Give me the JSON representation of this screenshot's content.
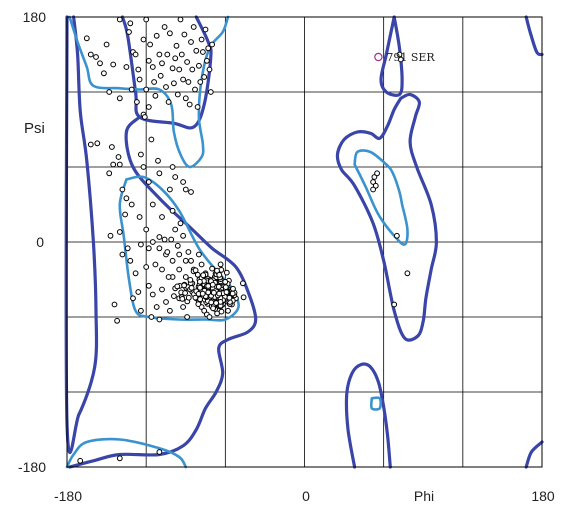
{
  "chart_data": {
    "type": "scatter",
    "title": "",
    "xlabel": "Phi",
    "ylabel": "Psi",
    "xlim": [
      -180,
      180
    ],
    "ylim": [
      -180,
      180
    ],
    "x_tick_labels": [
      "-180",
      "0",
      "Phi",
      "180"
    ],
    "y_tick_labels": [
      "180",
      "0",
      "-180"
    ],
    "grid": true,
    "annotation": {
      "text": "791 SER",
      "phi": 56,
      "psi": 148,
      "color": "#a03090"
    },
    "colors": {
      "allowed_contour": "#3a45a8",
      "favoured_contour": "#3a93cf",
      "points": "#000000",
      "grid": "#000000"
    },
    "contours": {
      "allowed": [
        [
          [
            -180,
            180
          ],
          [
            -180,
            -145
          ],
          [
            -171,
            -138
          ],
          [
            -159,
            -100
          ],
          [
            -158,
            -55
          ],
          [
            -160,
            0
          ],
          [
            -165,
            65
          ],
          [
            -170,
            105
          ],
          [
            -172,
            150
          ],
          [
            -175,
            180
          ]
        ],
        [
          [
            -138,
            180
          ],
          [
            -134,
            165
          ],
          [
            -128,
            120
          ],
          [
            -125,
            100
          ],
          [
            -99,
            95
          ],
          [
            -84,
            92
          ],
          [
            -76,
            110
          ],
          [
            -71,
            148
          ],
          [
            -73,
            160
          ],
          [
            -82,
            180
          ]
        ],
        [
          [
            -125,
            100
          ],
          [
            -135,
            88
          ],
          [
            -130,
            60
          ],
          [
            -110,
            35
          ],
          [
            -85,
            10
          ],
          [
            -70,
            -5
          ],
          [
            -52,
            -20
          ],
          [
            -42,
            -42
          ],
          [
            -37,
            -62
          ],
          [
            -43,
            -72
          ],
          [
            -58,
            -78
          ],
          [
            -65,
            -85
          ],
          [
            -62,
            -105
          ],
          [
            -67,
            -120
          ],
          [
            -75,
            -133
          ],
          [
            -82,
            -150
          ],
          [
            -92,
            -163
          ],
          [
            -110,
            -170
          ],
          [
            -140,
            -170
          ],
          [
            -160,
            -175
          ],
          [
            -178,
            -180
          ]
        ],
        [
          [
            38,
            -180
          ],
          [
            33,
            -150
          ],
          [
            32,
            -122
          ],
          [
            36,
            -105
          ],
          [
            43,
            -98
          ],
          [
            50,
            -100
          ],
          [
            56,
            -112
          ],
          [
            60,
            -132
          ],
          [
            63,
            -155
          ],
          [
            65,
            -180
          ]
        ],
        [
          [
            68,
            180
          ],
          [
            62,
            150
          ],
          [
            58,
            130
          ],
          [
            62,
            120
          ],
          [
            72,
            118
          ],
          [
            74,
            130
          ],
          [
            72,
            155
          ],
          [
            68,
            180
          ]
        ],
        [
          [
            73,
            115
          ],
          [
            80,
            118
          ],
          [
            87,
            112
          ],
          [
            84,
            100
          ],
          [
            80,
            80
          ],
          [
            85,
            60
          ],
          [
            96,
            30
          ],
          [
            100,
            0
          ],
          [
            96,
            -22
          ],
          [
            92,
            -45
          ],
          [
            90,
            -63
          ],
          [
            86,
            -75
          ],
          [
            76,
            -77
          ],
          [
            68,
            -55
          ],
          [
            60,
            -15
          ],
          [
            52,
            15
          ],
          [
            38,
            45
          ],
          [
            28,
            58
          ],
          [
            25,
            70
          ],
          [
            30,
            82
          ],
          [
            40,
            88
          ],
          [
            50,
            87
          ],
          [
            57,
            83
          ],
          [
            63,
            93
          ],
          [
            68,
            106
          ],
          [
            73,
            115
          ]
        ],
        [
          [
            168,
            180
          ],
          [
            171,
            168
          ],
          [
            176,
            152
          ],
          [
            180,
            150
          ]
        ],
        [
          [
            180,
            -160
          ],
          [
            172,
            -168
          ],
          [
            168,
            -180
          ]
        ]
      ],
      "favoured": [
        [
          [
            -178,
            180
          ],
          [
            -172,
            160
          ],
          [
            -165,
            140
          ],
          [
            -160,
            125
          ],
          [
            -140,
            123
          ],
          [
            -125,
            122
          ],
          [
            -110,
            122
          ],
          [
            -101,
            110
          ],
          [
            -99,
            88
          ],
          [
            -94,
            70
          ],
          [
            -87,
            60
          ],
          [
            -78,
            68
          ],
          [
            -77,
            78
          ],
          [
            -80,
            100
          ],
          [
            -78,
            130
          ],
          [
            -72,
            155
          ],
          [
            -62,
            168
          ],
          [
            -58,
            180
          ]
        ],
        [
          [
            -135,
            50
          ],
          [
            -140,
            30
          ],
          [
            -137,
            5
          ],
          [
            -133,
            -30
          ],
          [
            -128,
            -55
          ],
          [
            -118,
            -60
          ],
          [
            -95,
            -62
          ],
          [
            -75,
            -62
          ],
          [
            -60,
            -62
          ],
          [
            -50,
            -52
          ],
          [
            -55,
            -37
          ],
          [
            -65,
            -25
          ],
          [
            -80,
            -5
          ],
          [
            -95,
            25
          ],
          [
            -108,
            42
          ],
          [
            -122,
            52
          ],
          [
            -135,
            50
          ]
        ],
        [
          [
            -180,
            -180
          ],
          [
            -175,
            -170
          ],
          [
            -165,
            -160
          ],
          [
            -140,
            -158
          ],
          [
            -110,
            -165
          ],
          [
            -95,
            -172
          ],
          [
            -90,
            -180
          ]
        ],
        [
          [
            38,
            62
          ],
          [
            40,
            72
          ],
          [
            50,
            72
          ],
          [
            62,
            62
          ],
          [
            67,
            55
          ],
          [
            72,
            40
          ],
          [
            74,
            30
          ],
          [
            78,
            10
          ],
          [
            76,
            -2
          ],
          [
            68,
            5
          ],
          [
            56,
            22
          ],
          [
            46,
            45
          ],
          [
            38,
            62
          ]
        ],
        [
          [
            51,
            -125
          ],
          [
            57,
            -125
          ],
          [
            57,
            -133
          ],
          [
            51,
            -133
          ],
          [
            51,
            -125
          ]
        ]
      ]
    },
    "points": [
      [
        -165,
        163
      ],
      [
        -150,
        158
      ],
      [
        -145,
        142
      ],
      [
        -162,
        150
      ],
      [
        -155,
        143
      ],
      [
        -158,
        148
      ],
      [
        -152,
        135
      ],
      [
        -148,
        120
      ],
      [
        -140,
        178
      ],
      [
        -135,
        140
      ],
      [
        -133,
        168
      ],
      [
        -132,
        175
      ],
      [
        -130,
        152
      ],
      [
        -128,
        150
      ],
      [
        -126,
        138
      ],
      [
        -125,
        130
      ],
      [
        -122,
        162
      ],
      [
        -120,
        178
      ],
      [
        -118,
        145
      ],
      [
        -117,
        158
      ],
      [
        -115,
        140
      ],
      [
        -114,
        128
      ],
      [
        -113,
        117
      ],
      [
        -112,
        165
      ],
      [
        -110,
        150
      ],
      [
        -109,
        133
      ],
      [
        -108,
        143
      ],
      [
        -106,
        172
      ],
      [
        -105,
        124
      ],
      [
        -104,
        150
      ],
      [
        -103,
        112
      ],
      [
        -102,
        167
      ],
      [
        -100,
        139
      ],
      [
        -99,
        127
      ],
      [
        -98,
        147
      ],
      [
        -97,
        157
      ],
      [
        -96,
        118
      ],
      [
        -95,
        138
      ],
      [
        -94,
        178
      ],
      [
        -93,
        150
      ],
      [
        -92,
        130
      ],
      [
        -91,
        166
      ],
      [
        -90,
        115
      ],
      [
        -89,
        144
      ],
      [
        -88,
        128
      ],
      [
        -87,
        110
      ],
      [
        -86,
        160
      ],
      [
        -85,
        138
      ],
      [
        -84,
        172
      ],
      [
        -83,
        122
      ],
      [
        -82,
        153
      ],
      [
        -81,
        108
      ],
      [
        -80,
        141
      ],
      [
        -79,
        128
      ],
      [
        -78,
        162
      ],
      [
        -77,
        152
      ],
      [
        -76,
        132
      ],
      [
        -75,
        170
      ],
      [
        -74,
        145
      ],
      [
        -73,
        155
      ],
      [
        -72,
        138
      ],
      [
        -71,
        120
      ],
      [
        -70,
        158
      ],
      [
        -120,
        122
      ],
      [
        -118,
        108
      ],
      [
        -122,
        102
      ],
      [
        -121,
        100
      ],
      [
        -140,
        115
      ],
      [
        -127,
        112
      ],
      [
        -131,
        122
      ],
      [
        -145,
        62
      ],
      [
        -148,
        55
      ],
      [
        -140,
        62
      ],
      [
        -122,
        60
      ],
      [
        -124,
        70
      ],
      [
        -116,
        82
      ],
      [
        -111,
        65
      ],
      [
        -110,
        55
      ],
      [
        -100,
        60
      ],
      [
        -98,
        52
      ],
      [
        -92,
        48
      ],
      [
        -90,
        42
      ],
      [
        -86,
        40
      ],
      [
        -138,
        42
      ],
      [
        -135,
        35
      ],
      [
        -131,
        30
      ],
      [
        -136,
        22
      ],
      [
        -125,
        20
      ],
      [
        -120,
        10
      ],
      [
        -115,
        0
      ],
      [
        -110,
        -5
      ],
      [
        -105,
        -10
      ],
      [
        -100,
        -15
      ],
      [
        -95,
        -22
      ],
      [
        -90,
        -28
      ],
      [
        -85,
        -33
      ],
      [
        -132,
        -15
      ],
      [
        -128,
        -25
      ],
      [
        -126,
        -40
      ],
      [
        -124,
        -55
      ],
      [
        -118,
        -35
      ],
      [
        -115,
        -42
      ],
      [
        -112,
        -52
      ],
      [
        -108,
        -38
      ],
      [
        -105,
        -48
      ],
      [
        -102,
        -55
      ],
      [
        -100,
        -28
      ],
      [
        -98,
        -37
      ],
      [
        -95,
        -45
      ],
      [
        -92,
        -52
      ],
      [
        -89,
        -60
      ],
      [
        -120,
        -20
      ],
      [
        -113,
        -18
      ],
      [
        -108,
        -22
      ],
      [
        -103,
        -28
      ],
      [
        -110,
        4
      ],
      [
        -106,
        2
      ],
      [
        -104,
        -8
      ],
      [
        -101,
        2
      ],
      [
        -118,
        -5
      ],
      [
        -124,
        -2
      ],
      [
        -115,
        30
      ],
      [
        -108,
        20
      ],
      [
        -100,
        25
      ],
      [
        -98,
        10
      ],
      [
        -94,
        15
      ],
      [
        -92,
        5
      ],
      [
        -88,
        -8
      ],
      [
        -86,
        -15
      ],
      [
        -84,
        -22
      ],
      [
        -80,
        -10
      ],
      [
        -78,
        -18
      ],
      [
        -75,
        -25
      ],
      [
        -72,
        -30
      ],
      [
        -70,
        -35
      ],
      [
        -85,
        -40
      ],
      [
        -82,
        -45
      ],
      [
        -80,
        -48
      ],
      [
        -78,
        -52
      ],
      [
        -76,
        -55
      ],
      [
        -74,
        -58
      ],
      [
        -72,
        -60
      ],
      [
        -65,
        -45
      ],
      [
        -62,
        -50
      ],
      [
        -58,
        -55
      ],
      [
        -55,
        -50
      ],
      [
        -52,
        -45
      ],
      [
        -60,
        -32
      ],
      [
        -56,
        -38
      ],
      [
        -68,
        -28
      ],
      [
        -66,
        -40
      ],
      [
        -140,
        8
      ],
      [
        -138,
        -10
      ],
      [
        -134,
        -5
      ],
      [
        -116,
        -60
      ],
      [
        -110,
        -62
      ],
      [
        -130,
        -45
      ],
      [
        -95,
        -10
      ],
      [
        -90,
        -15
      ],
      [
        -96,
        -3
      ],
      [
        -162,
        78
      ],
      [
        -157,
        79
      ],
      [
        -146,
        76
      ],
      [
        -141,
        68
      ],
      [
        -147,
        5
      ],
      [
        -144,
        -50
      ],
      [
        -142,
        -63
      ],
      [
        -170,
        -175
      ],
      [
        -140,
        -173
      ],
      [
        -110,
        -168
      ],
      [
        -118,
        48
      ],
      [
        -102,
        42
      ],
      [
        52,
        48
      ],
      [
        54,
        45
      ],
      [
        53,
        52
      ],
      [
        55,
        55
      ],
      [
        52,
        42
      ],
      [
        70,
        5
      ],
      [
        78,
        -25
      ],
      [
        68,
        -50
      ],
      [
        72,
        150
      ],
      [
        73,
        146
      ]
    ],
    "dense_clusters": [
      {
        "phi": -67,
        "psi": -42,
        "spread_phi": 9,
        "spread_psi": 7,
        "count": 230
      },
      {
        "phi": -75,
        "psi": -36,
        "spread_phi": 14,
        "spread_psi": 10,
        "count": 90
      }
    ]
  }
}
